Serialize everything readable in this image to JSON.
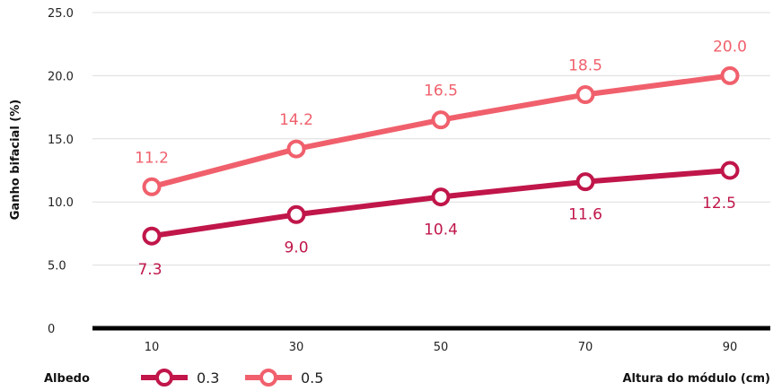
{
  "chart_data": {
    "type": "line",
    "xlabel": "Altura do módulo (cm)",
    "ylabel": "Ganho bifacial (%)",
    "x": [
      10,
      30,
      50,
      70,
      90
    ],
    "categories": [
      "10",
      "30",
      "50",
      "70",
      "90"
    ],
    "yticks": [
      "0",
      "5.0",
      "10.0",
      "15.0",
      "20.0",
      "25.0"
    ],
    "ylim": [
      0,
      25
    ],
    "grid": true,
    "legend_title": "Albedo",
    "legend_position": "bottom-left",
    "series": [
      {
        "name": "0.3",
        "values": [
          7.3,
          9.0,
          10.4,
          11.6,
          12.5
        ],
        "labels": [
          "7.3",
          "9.0",
          "10.4",
          "11.6",
          "12.5"
        ],
        "color": "#c0164a"
      },
      {
        "name": "0.5",
        "values": [
          11.2,
          14.2,
          16.5,
          18.5,
          20.0
        ],
        "labels": [
          "11.2",
          "14.2",
          "16.5",
          "18.5",
          "20.0"
        ],
        "color": "#f0606c"
      }
    ]
  }
}
